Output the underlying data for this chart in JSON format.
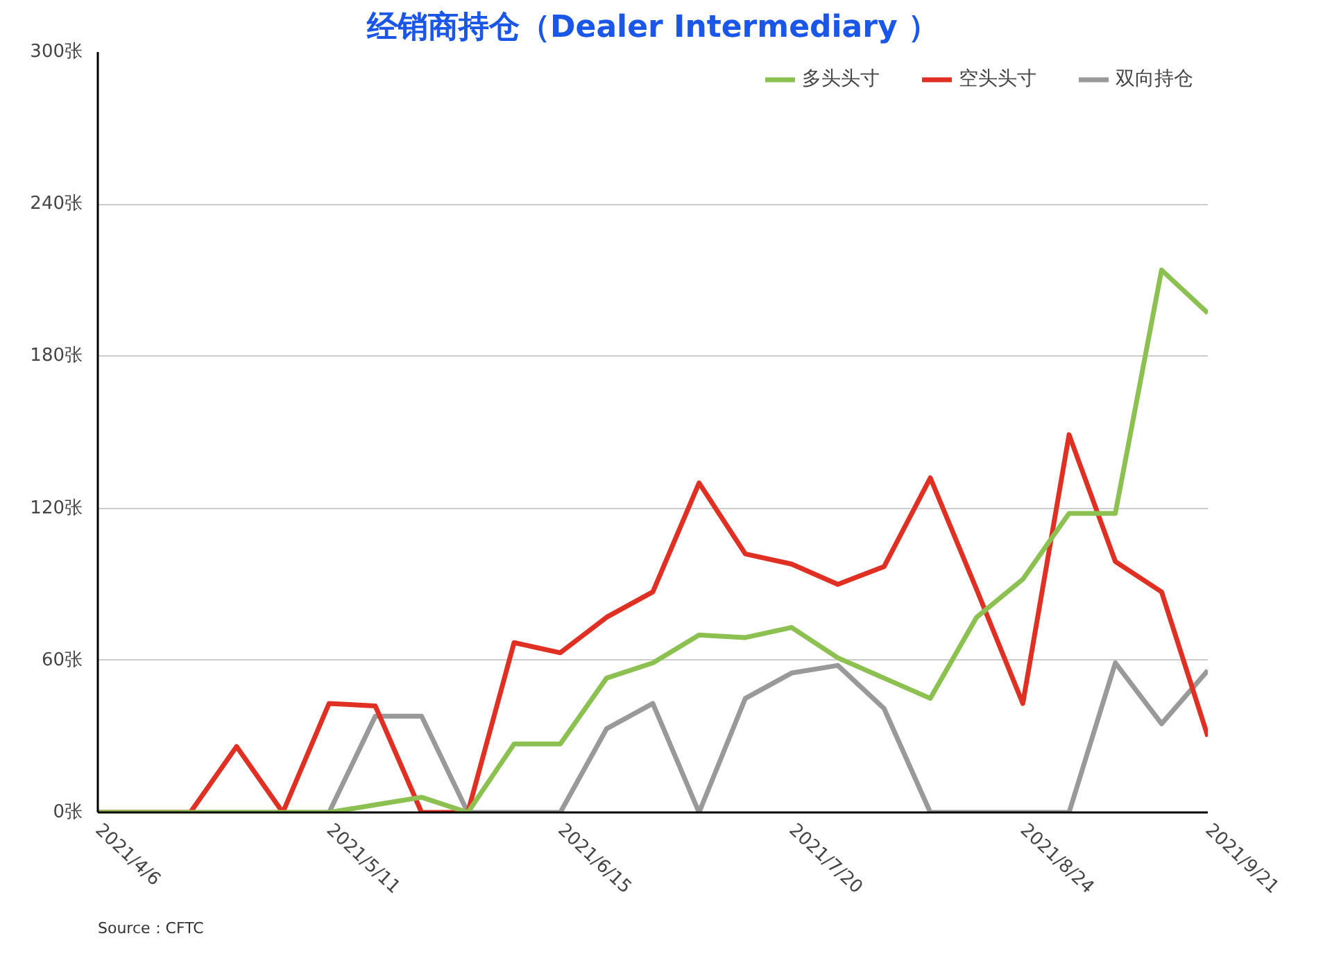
{
  "chart_data": {
    "type": "line",
    "title": "经销商持仓（Dealer Intermediary ）",
    "x": [
      "2021-04-06",
      "2021-04-13",
      "2021-04-20",
      "2021-04-27",
      "2021-05-04",
      "2021-05-11",
      "2021-05-18",
      "2021-05-25",
      "2021-06-01",
      "2021-06-08",
      "2021-06-15",
      "2021-06-22",
      "2021-06-29",
      "2021-07-06",
      "2021-07-13",
      "2021-07-20",
      "2021-07-27",
      "2021-08-03",
      "2021-08-10",
      "2021-08-17",
      "2021-08-24",
      "2021-08-31",
      "2021-09-07",
      "2021-09-14",
      "2021-09-21"
    ],
    "xlim": [
      "2021-04-06",
      "2021-09-21"
    ],
    "xticks": [
      {
        "value": "2021-04-06",
        "label": "2021/4/6"
      },
      {
        "value": "2021-05-11",
        "label": "2021/5/11"
      },
      {
        "value": "2021-06-15",
        "label": "2021/6/15"
      },
      {
        "value": "2021-07-20",
        "label": "2021/7/20"
      },
      {
        "value": "2021-08-24",
        "label": "2021/8/24"
      },
      {
        "value": "2021-09-21",
        "label": "2021/9/21"
      }
    ],
    "ylim": [
      0,
      300
    ],
    "yticks": [
      {
        "value": 0,
        "label": "0张"
      },
      {
        "value": 60,
        "label": "60张"
      },
      {
        "value": 120,
        "label": "120张"
      },
      {
        "value": 180,
        "label": "180张"
      },
      {
        "value": 240,
        "label": "240张"
      },
      {
        "value": 300,
        "label": "300张"
      }
    ],
    "grid": "y",
    "legend": "top right",
    "series": [
      {
        "name": "多头头寸",
        "color": "#8cc152",
        "values": [
          0,
          0,
          0,
          0,
          0,
          0,
          3,
          6,
          0,
          27,
          27,
          53,
          59,
          70,
          69,
          73,
          61,
          53,
          45,
          77,
          92,
          118,
          118,
          214,
          197
        ]
      },
      {
        "name": "空头头寸",
        "color": "#e03024",
        "values": [
          0,
          0,
          0,
          26,
          0,
          43,
          42,
          0,
          0,
          67,
          63,
          77,
          87,
          130,
          102,
          98,
          90,
          97,
          132,
          88,
          43,
          149,
          99,
          87,
          30
        ]
      },
      {
        "name": "双向持仓",
        "color": "#999999",
        "values": [
          0,
          0,
          0,
          0,
          0,
          0,
          38,
          38,
          0,
          0,
          0,
          33,
          43,
          0,
          45,
          55,
          58,
          41,
          0,
          0,
          0,
          0,
          59,
          35,
          56
        ]
      }
    ],
    "annotations": [
      "Source：CFTC"
    ]
  }
}
